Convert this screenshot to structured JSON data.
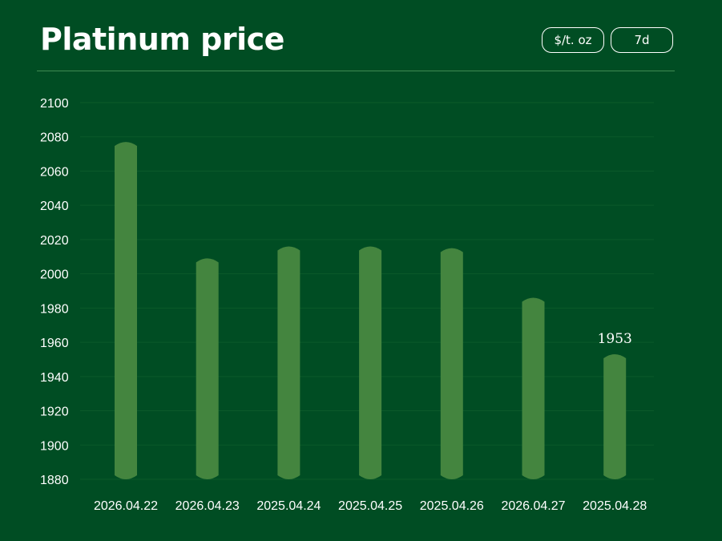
{
  "header": {
    "title": "Platinum price",
    "unit_button": "$/t. oz",
    "range_button": "7d"
  },
  "colors": {
    "background": "#004d23",
    "bar": "#44853f",
    "divider": "#3f8a52",
    "grid": "#0b5a2a",
    "text": "#ffffff"
  },
  "chart_data": {
    "type": "bar",
    "categories": [
      "2026.04.22",
      "2026.04.23",
      "2025.04.24",
      "2025.04.25",
      "2025.04.26",
      "2026.04.27",
      "2025.04.28"
    ],
    "values": [
      2077,
      2009,
      2016,
      2016,
      2015,
      1986,
      1953
    ],
    "yticks": [
      1880,
      1900,
      1920,
      1940,
      1960,
      1980,
      2000,
      2020,
      2040,
      2060,
      2080,
      2100
    ],
    "ylim": [
      1880,
      2100
    ],
    "annotations": [
      {
        "category": "2025.04.28",
        "text": "1953"
      }
    ],
    "title": "Platinum price",
    "grid": true,
    "legend": "none"
  }
}
